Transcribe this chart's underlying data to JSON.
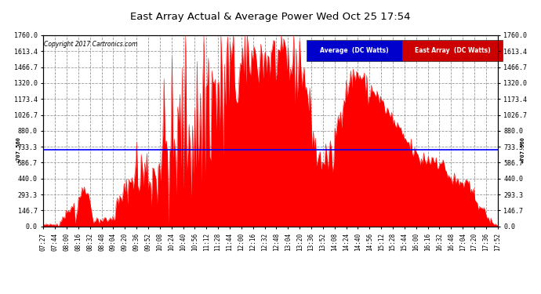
{
  "title": "East Array Actual & Average Power Wed Oct 25 17:54",
  "copyright": "Copyright 2017 Cartronics.com",
  "avg_value": 707.56,
  "y_ticks": [
    0.0,
    146.7,
    293.3,
    440.0,
    586.7,
    733.3,
    880.0,
    1026.7,
    1173.4,
    1320.0,
    1466.7,
    1613.4,
    1760.0
  ],
  "ymax": 1760.0,
  "ymin": 0.0,
  "fill_color": "#ff0000",
  "avg_line_color": "#0000ff",
  "bg_color": "#ffffff",
  "grid_color": "#999999",
  "legend_avg_bg": "#0000cc",
  "legend_east_bg": "#cc0000",
  "legend_avg_text": "Average  (DC Watts)",
  "legend_east_text": "East Array  (DC Watts)",
  "x_tick_labels": [
    "07:27",
    "07:44",
    "08:00",
    "08:16",
    "08:32",
    "08:48",
    "09:04",
    "09:20",
    "09:36",
    "09:52",
    "10:08",
    "10:24",
    "10:40",
    "10:56",
    "11:12",
    "11:28",
    "11:44",
    "12:00",
    "12:16",
    "12:32",
    "12:48",
    "13:04",
    "13:20",
    "13:36",
    "13:52",
    "14:08",
    "14:24",
    "14:40",
    "14:56",
    "15:12",
    "15:28",
    "15:44",
    "16:00",
    "16:16",
    "16:32",
    "16:48",
    "17:04",
    "17:20",
    "17:36",
    "17:52"
  ],
  "n_points": 400
}
